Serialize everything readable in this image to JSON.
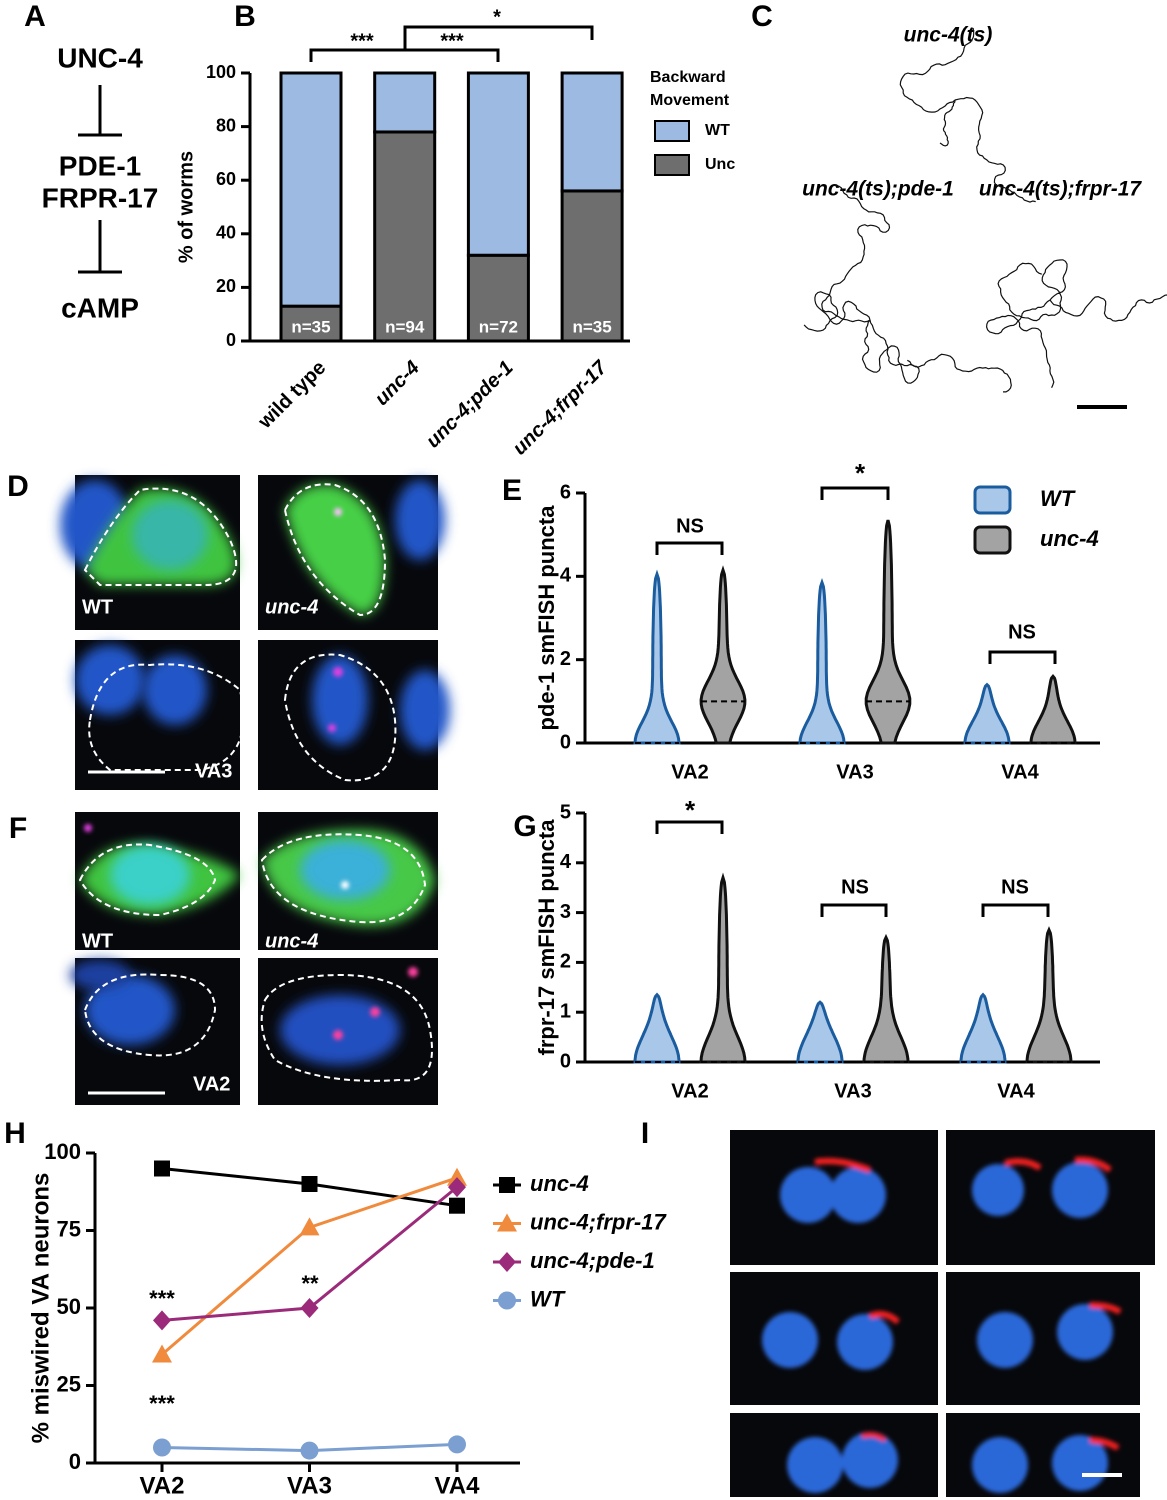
{
  "figure": {
    "panel_labels": [
      "A",
      "B",
      "C",
      "D",
      "E",
      "F",
      "G",
      "H",
      "I"
    ]
  },
  "pathway": {
    "nodes": [
      "UNC-4",
      "PDE-1",
      "FRPR-17",
      "cAMP"
    ]
  },
  "tracks": {
    "titles": [
      "unc-4(ts)",
      "unc-4(ts);pde-1",
      "unc-4(ts);frpr-17"
    ]
  },
  "micrographs": [
    {
      "labels": [
        "WT",
        "unc-4",
        "VA3"
      ]
    },
    {
      "labels": [
        "WT",
        "unc-4",
        "VA2"
      ]
    }
  ],
  "chart_data": [
    {
      "type": "bar",
      "stacked": true,
      "categories": [
        "wild type",
        "unc-4",
        "unc-4;pde-1",
        "unc-4;frpr-17"
      ],
      "series": [
        {
          "name": "Unc",
          "color": "#6e6e6e",
          "values": [
            13,
            78,
            32,
            56
          ]
        },
        {
          "name": "WT",
          "color": "#9dbbe2",
          "values": [
            87,
            22,
            68,
            44
          ]
        }
      ],
      "n_labels": [
        "n=35",
        "n=94",
        "n=72",
        "n=35"
      ],
      "ylabel": "% of worms",
      "ylim": [
        0,
        100
      ],
      "yticks": [
        0,
        20,
        40,
        60,
        80,
        100
      ],
      "legend_title": "Backward Movement",
      "annotations": [
        "***",
        "***",
        "*"
      ]
    },
    {
      "type": "violin",
      "categories": [
        "VA2",
        "VA3",
        "VA4"
      ],
      "ylabel": "pde-1 smFISH puncta",
      "ylim": [
        0,
        6
      ],
      "yticks": [
        0,
        2,
        4,
        6
      ],
      "series": [
        {
          "name": "WT",
          "color": "#1a5c9e",
          "fill": "#a9c7e9",
          "max": [
            4.05,
            3.85,
            1.4
          ],
          "median": [
            0,
            0,
            0
          ]
        },
        {
          "name": "unc-4",
          "color": "#111111",
          "fill": "#a3a3a3",
          "max": [
            4.15,
            5.35,
            1.6
          ],
          "median": [
            1,
            1,
            0
          ]
        }
      ],
      "annotations": [
        "NS",
        "*",
        "NS"
      ]
    },
    {
      "type": "violin",
      "categories": [
        "VA2",
        "VA3",
        "VA4"
      ],
      "ylabel": "frpr-17 smFISH puncta",
      "ylim": [
        0,
        5
      ],
      "yticks": [
        0,
        1,
        2,
        3,
        4,
        5
      ],
      "series": [
        {
          "color": "#1a5c9e",
          "fill": "#a9c7e9",
          "max": [
            1.35,
            1.2,
            1.35
          ],
          "median": [
            0,
            0,
            0
          ]
        },
        {
          "color": "#111111",
          "fill": "#a3a3a3",
          "max": [
            3.7,
            2.5,
            2.65
          ],
          "median": [
            0,
            0,
            0
          ]
        }
      ],
      "annotations": [
        "*",
        "NS",
        "NS"
      ]
    },
    {
      "type": "line",
      "categories": [
        "VA2",
        "VA3",
        "VA4"
      ],
      "ylabel": "% miswired VA neurons",
      "ylim": [
        0,
        100
      ],
      "yticks": [
        0,
        25,
        50,
        75,
        100
      ],
      "series": [
        {
          "name": "unc-4",
          "color": "#000000",
          "marker": "square",
          "values": [
            95,
            90,
            83
          ]
        },
        {
          "name": "unc-4;frpr-17",
          "color": "#f08a3c",
          "marker": "triangle",
          "values": [
            35,
            76,
            92
          ]
        },
        {
          "name": "unc-4;pde-1",
          "color": "#9b2a7a",
          "marker": "diamond",
          "values": [
            46,
            50,
            89
          ]
        },
        {
          "name": "WT",
          "color": "#7b9fd0",
          "marker": "circle",
          "values": [
            5,
            4,
            6
          ]
        }
      ],
      "annotations": [
        "***",
        "***",
        "**"
      ]
    }
  ]
}
